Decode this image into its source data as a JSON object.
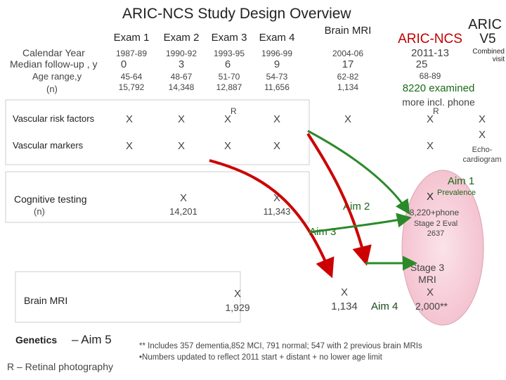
{
  "title": "ARIC-NCS Study Design Overview",
  "columns": {
    "exam1": "Exam 1",
    "exam2": "Exam 2",
    "exam3": "Exam 3",
    "exam4": "Exam 4",
    "brain_mri": "Brain MRI",
    "aric_ncs": "ARIC-NCS",
    "aric": "ARIC",
    "v5": "V5"
  },
  "row_labels": {
    "calendar_year": "Calendar Year",
    "median_followup": "Median follow-up , y",
    "age_range": "Age range,y",
    "n": "(n)",
    "vascular_risk": "Vascular risk factors",
    "vascular_markers": "Vascular markers",
    "cognitive_testing": "Cognitive testing",
    "cognitive_n": "(n)",
    "brain_mri": "Brain MRI",
    "genetics": "Genetics",
    "genetics_aim": "– Aim 5",
    "retinal": "R – Retinal photography"
  },
  "years": [
    "1987-89",
    "1990-92",
    "1993-95",
    "1996-99",
    "2004-06",
    "2011-13"
  ],
  "followup": [
    "0",
    "3",
    "6",
    "9",
    "17",
    "25"
  ],
  "ages": [
    "45-64",
    "48-67",
    "51-70",
    "54-73",
    "62-82",
    "68-89"
  ],
  "ns": [
    "15,792",
    "14,348",
    "12,887",
    "11,656",
    "1,134"
  ],
  "combined_visit": "Combined visit",
  "examined_line1": "8220 examined",
  "examined_line2": "more incl. phone",
  "marks": {
    "x": "X",
    "r": "R"
  },
  "cog_n": [
    "14,201",
    "11,343"
  ],
  "brain_mri_n1": "1,929",
  "brain_mri_n2": "1,134",
  "echo": "Echo-cardiogram",
  "aims": {
    "aim1": "Aim 1",
    "aim2": "Aim 2",
    "aim3": "Aim 3",
    "aim4": "Aim 4",
    "prevalence": "Prevalence",
    "phone": "8,220+phone",
    "stage2": "Stage 2 Eval",
    "stage2_n": "2637",
    "stage3": "Stage 3 MRI",
    "stage3_n": "2,000**"
  },
  "footnotes": {
    "note1": "** Includes 357 dementia,852 MCI, 791 normal; 547 with 2 previous brain MRIs",
    "note2": "•Numbers updated to reflect 2011 start + distant + no lower age limit"
  },
  "colors": {
    "red": "#cc0000",
    "green": "#1a6a1a",
    "pink": "#f7d2dc",
    "gray_box": "#d8d8d8"
  }
}
